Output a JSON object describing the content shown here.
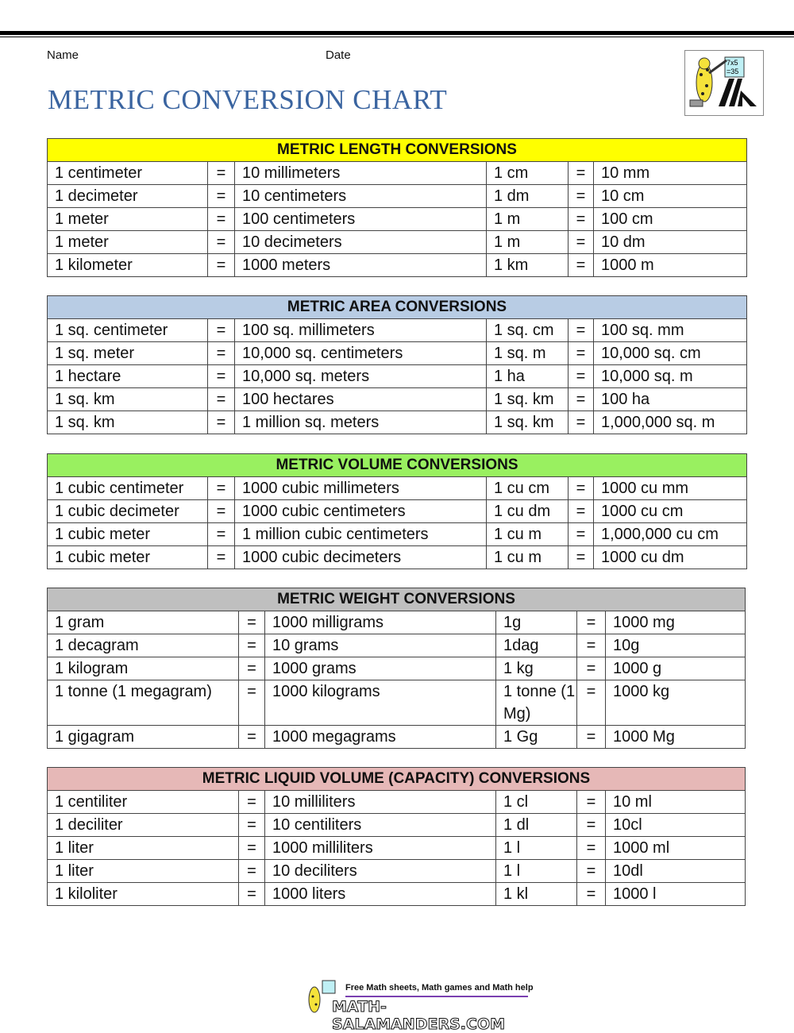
{
  "header": {
    "name_label": "Name",
    "date_label": "Date",
    "title": "METRIC CONVERSION CHART"
  },
  "logo": {
    "board_text": "7x5\n=35",
    "icon": "salamander-logo"
  },
  "tables": [
    {
      "title": "METRIC LENGTH CONVERSIONS",
      "color": "#ffff00",
      "layout": "a",
      "rows": [
        [
          "1 centimeter",
          "=",
          "10 millimeters",
          "1 cm",
          "=",
          "10 mm"
        ],
        [
          "1 decimeter",
          "=",
          "10 centimeters",
          "1 dm",
          "=",
          "10 cm"
        ],
        [
          "1 meter",
          "=",
          "100 centimeters",
          "1 m",
          "=",
          "100 cm"
        ],
        [
          "1 meter",
          "=",
          "10 decimeters",
          "1 m",
          "=",
          "10 dm"
        ],
        [
          "1 kilometer",
          "=",
          "1000 meters",
          "1 km",
          "=",
          "1000 m"
        ]
      ]
    },
    {
      "title": "METRIC AREA CONVERSIONS",
      "color": "#b8cce4",
      "layout": "a",
      "rows": [
        [
          "1 sq. centimeter",
          "=",
          "100 sq. millimeters",
          "1 sq. cm",
          "=",
          "100 sq. mm"
        ],
        [
          "1 sq. meter",
          "=",
          "10,000 sq. centimeters",
          "1 sq. m",
          "=",
          "10,000 sq. cm"
        ],
        [
          "1 hectare",
          "=",
          "10,000 sq. meters",
          "1 ha",
          "=",
          "10,000 sq. m"
        ],
        [
          "1 sq. km",
          "=",
          "100 hectares",
          "1 sq. km",
          "=",
          "100 ha"
        ],
        [
          "1 sq. km",
          "=",
          "1 million sq. meters",
          "1 sq. km",
          "=",
          "1,000,000 sq. m"
        ]
      ]
    },
    {
      "title": "METRIC VOLUME CONVERSIONS",
      "color": "#99f060",
      "layout": "a",
      "rows": [
        [
          "1 cubic centimeter",
          "=",
          "1000 cubic millimeters",
          "1 cu cm",
          "=",
          "1000 cu mm"
        ],
        [
          "1 cubic decimeter",
          "=",
          "1000 cubic centimeters",
          "1 cu dm",
          "=",
          "1000 cu cm"
        ],
        [
          "1 cubic meter",
          "=",
          "1 million cubic centimeters",
          "1 cu m",
          "=",
          "1,000,000 cu cm"
        ],
        [
          "1 cubic meter",
          "=",
          "1000 cubic decimeters",
          "1 cu m",
          "=",
          "1000 cu dm"
        ]
      ]
    },
    {
      "title": "METRIC WEIGHT CONVERSIONS",
      "color": "#bfbfbf",
      "layout": "b",
      "rows": [
        [
          "1 gram",
          "=",
          "1000 milligrams",
          "1g",
          "=",
          "1000 mg"
        ],
        [
          "1 decagram",
          "=",
          "10 grams",
          "1dag",
          "=",
          "10g"
        ],
        [
          "1 kilogram",
          "=",
          "1000 grams",
          "1 kg",
          "=",
          "1000 g"
        ],
        [
          "1 tonne (1 megagram)",
          "=",
          "1000 kilograms",
          "1 tonne (1 Mg)",
          "=",
          "1000 kg"
        ],
        [
          "1 gigagram",
          "=",
          "1000 megagrams",
          "1 Gg",
          "=",
          "1000 Mg"
        ]
      ]
    },
    {
      "title": "METRIC LIQUID VOLUME (CAPACITY) CONVERSIONS",
      "color": "#e6b8b7",
      "layout": "b",
      "rows": [
        [
          "1 centiliter",
          "=",
          "10 milliliters",
          "1 cl",
          "=",
          "10 ml"
        ],
        [
          "1 deciliter",
          "=",
          "10 centiliters",
          "1 dl",
          "=",
          "10cl"
        ],
        [
          "1 liter",
          "=",
          "1000 milliliters",
          "1 l",
          "=",
          "1000 ml"
        ],
        [
          "1 liter",
          "=",
          "10 deciliters",
          "1 l",
          "=",
          "10dl"
        ],
        [
          "1 kiloliter",
          "=",
          "1000 liters",
          "1 kl",
          "=",
          "1000 l"
        ]
      ]
    }
  ],
  "footer": {
    "tagline": "Free Math sheets, Math games and Math help",
    "site": "MATH-SALAMANDERS.COM"
  }
}
